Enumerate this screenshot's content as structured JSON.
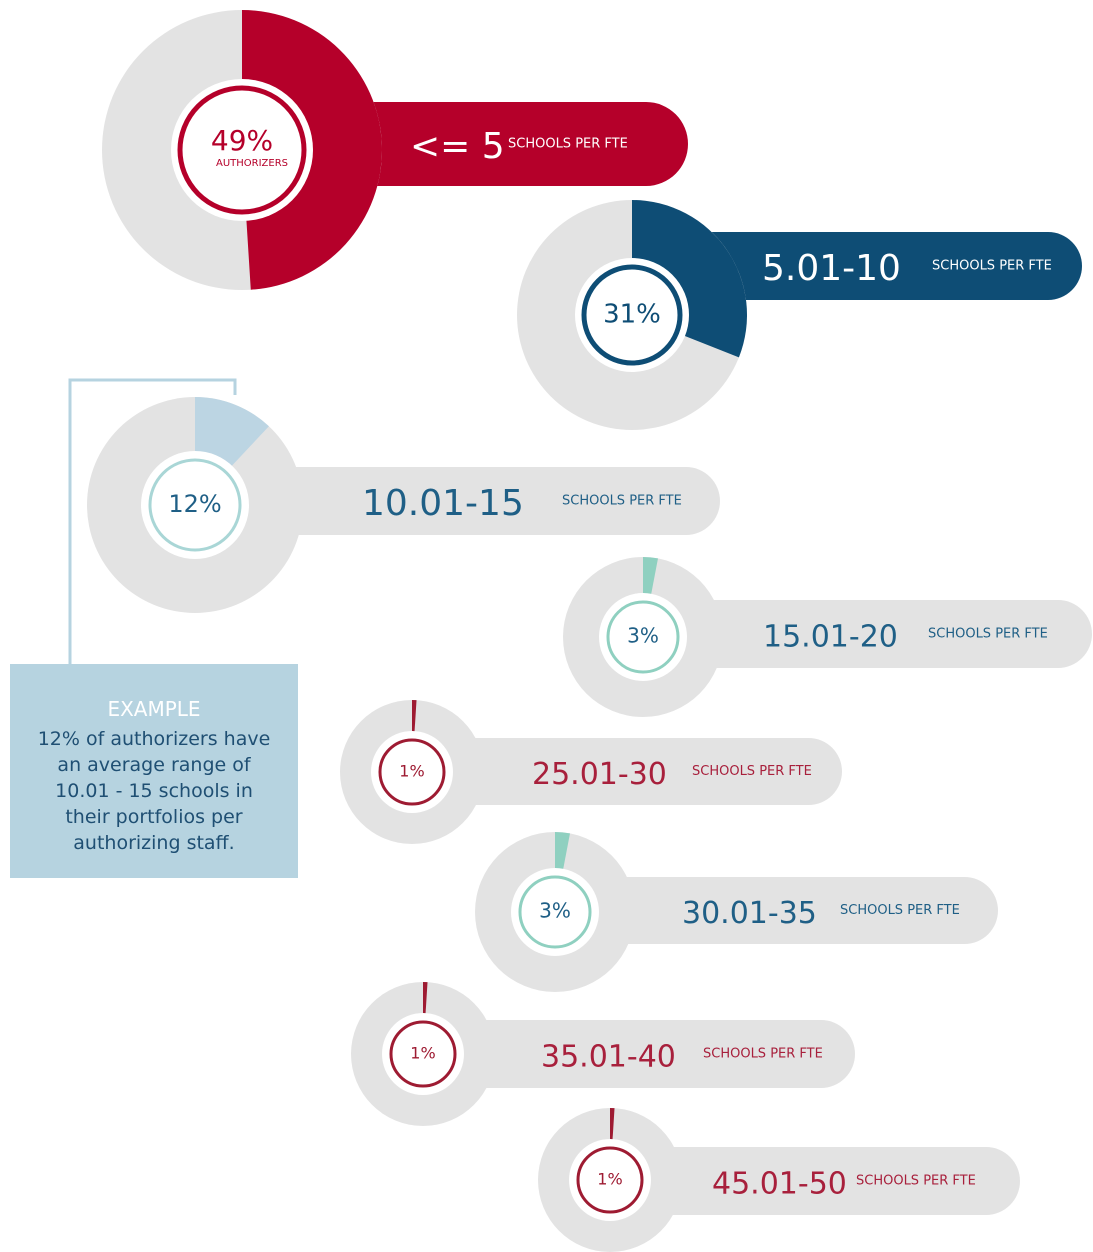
{
  "chart_data": {
    "type": "pie",
    "categories": [
      "<= 5",
      "5.01-10",
      "10.01-15",
      "15.01-20",
      "25.01-30",
      "30.01-35",
      "35.01-40",
      "45.01-50"
    ],
    "values": [
      49,
      31,
      12,
      3,
      1,
      3,
      1,
      1
    ],
    "value_labels": [
      "49%",
      "31%",
      "12%",
      "3%",
      "1%",
      "3%",
      "1%",
      "1%"
    ],
    "unit_label": "SCHOOLS PER FTE",
    "value_caption": "AUTHORIZERS",
    "example_title": "EXAMPLE",
    "example_text": "12% of authorizers have\nan average range of\n10.01 - 15 schools in\ntheir portfolios per\nauthorizing staff."
  }
}
